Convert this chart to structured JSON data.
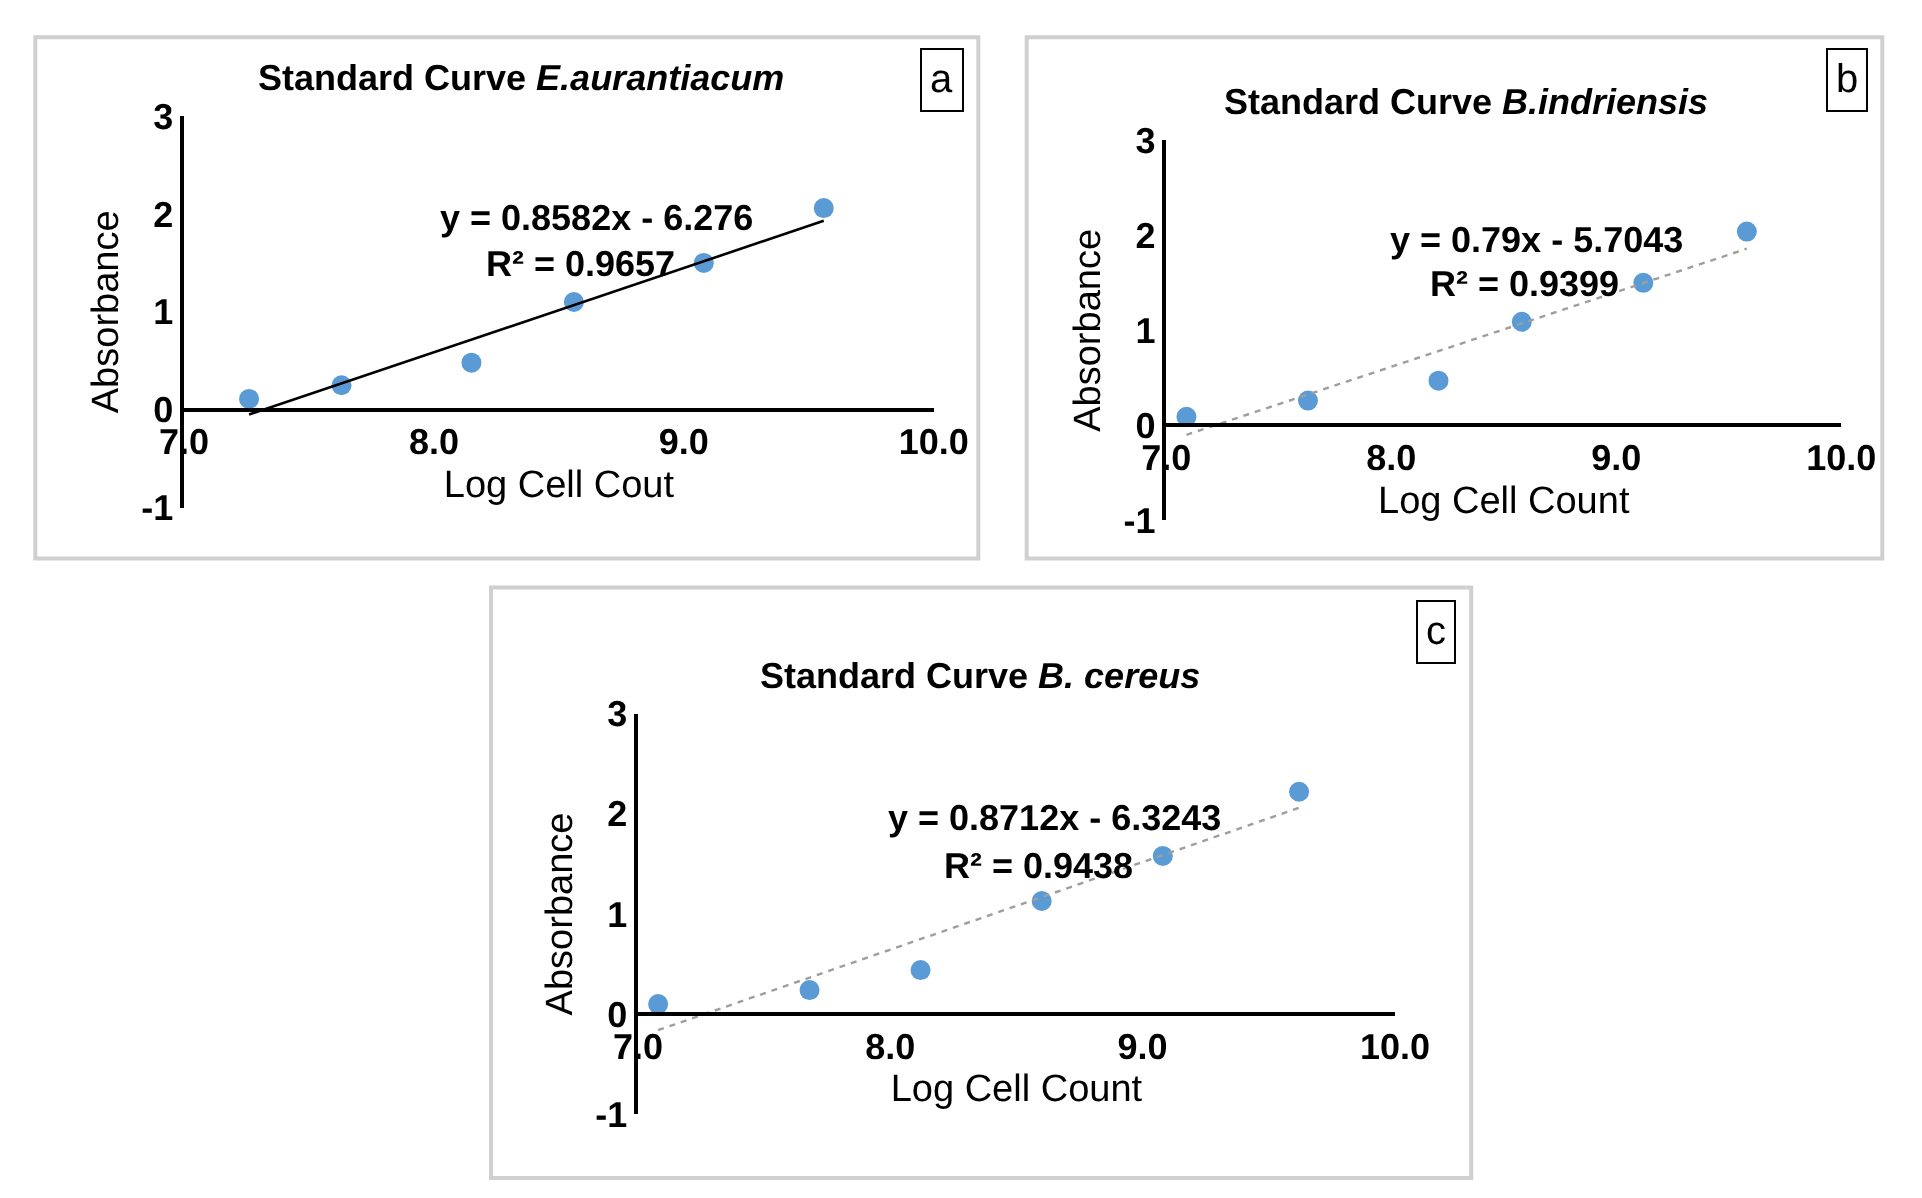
{
  "chart_data": [
    {
      "type": "scatter",
      "title": "Standard Curve E.aurantiacum",
      "xlabel": "Log Cell Cout",
      "ylabel": "Absorbance",
      "annotations": [
        "y = 0.8582x - 6.276",
        "R² = 0.9657",
        "a"
      ],
      "xlim": [
        7,
        10
      ],
      "xticks": [
        {
          "value": 7,
          "label": "7.0"
        },
        {
          "value": 8,
          "label": "8.0"
        },
        {
          "value": 9,
          "label": "9.0"
        },
        {
          "value": 10,
          "label": "10.0"
        }
      ],
      "ylim": [
        -1,
        3
      ],
      "yticks": [
        -1,
        0,
        1,
        2,
        3
      ],
      "series": [
        {
          "marker": "circle",
          "color": "#5b9bd5",
          "x": [
            7.26,
            7.63,
            8.15,
            8.56,
            9.08,
            9.56
          ],
          "values": [
            0.11,
            0.25,
            0.48,
            1.1,
            1.5,
            2.06
          ]
        },
        {
          "type": "line",
          "color": "#000000",
          "line_style": "solid",
          "x": [
            7.26,
            9.56
          ],
          "values": [
            -0.05,
            1.93
          ]
        }
      ]
    },
    {
      "type": "scatter",
      "title": "Standard Curve B.indriensis",
      "xlabel": "Log Cell Count",
      "ylabel": "Absorbance",
      "annotations": [
        "y = 0.79x - 5.7043",
        "R² = 0.9399",
        "b"
      ],
      "xlim": [
        7,
        10
      ],
      "xticks": [
        {
          "value": 7,
          "label": "7.0"
        },
        {
          "value": 8,
          "label": "8.0"
        },
        {
          "value": 9,
          "label": "9.0"
        },
        {
          "value": 10,
          "label": "10.0"
        }
      ],
      "ylim": [
        -1,
        3
      ],
      "yticks": [
        -1,
        0,
        1,
        2,
        3
      ],
      "series": [
        {
          "marker": "circle",
          "color": "#5b9bd5",
          "x": [
            7.09,
            7.63,
            8.21,
            8.58,
            9.12,
            9.58
          ],
          "values": [
            0.09,
            0.26,
            0.47,
            1.09,
            1.5,
            2.04
          ]
        },
        {
          "type": "line",
          "color": "#9e9e9e",
          "line_style": "dotted",
          "x": [
            7.09,
            9.58
          ],
          "values": [
            -0.1,
            1.86
          ]
        }
      ]
    },
    {
      "type": "scatter",
      "title": "Standard Curve B. cereus",
      "xlabel": "Log Cell Count",
      "ylabel": "Absorbance",
      "annotations": [
        "y = 0.8712x - 6.3243",
        "R² = 0.9438",
        "c"
      ],
      "xlim": [
        7,
        10
      ],
      "xticks": [
        {
          "value": 7,
          "label": "7.0"
        },
        {
          "value": 8,
          "label": "8.0"
        },
        {
          "value": 9,
          "label": "9.0"
        },
        {
          "value": 10,
          "label": "10.0"
        }
      ],
      "ylim": [
        -1,
        3
      ],
      "yticks": [
        -1,
        0,
        1,
        2,
        3
      ],
      "series": [
        {
          "marker": "circle",
          "color": "#5b9bd5",
          "x": [
            7.08,
            7.68,
            8.12,
            8.6,
            9.08,
            9.62
          ],
          "values": [
            0.1,
            0.24,
            0.44,
            1.13,
            1.58,
            2.22
          ]
        },
        {
          "type": "line",
          "color": "#9e9e9e",
          "line_style": "dotted",
          "x": [
            7.08,
            9.62
          ],
          "values": [
            -0.16,
            2.06
          ]
        }
      ]
    }
  ]
}
